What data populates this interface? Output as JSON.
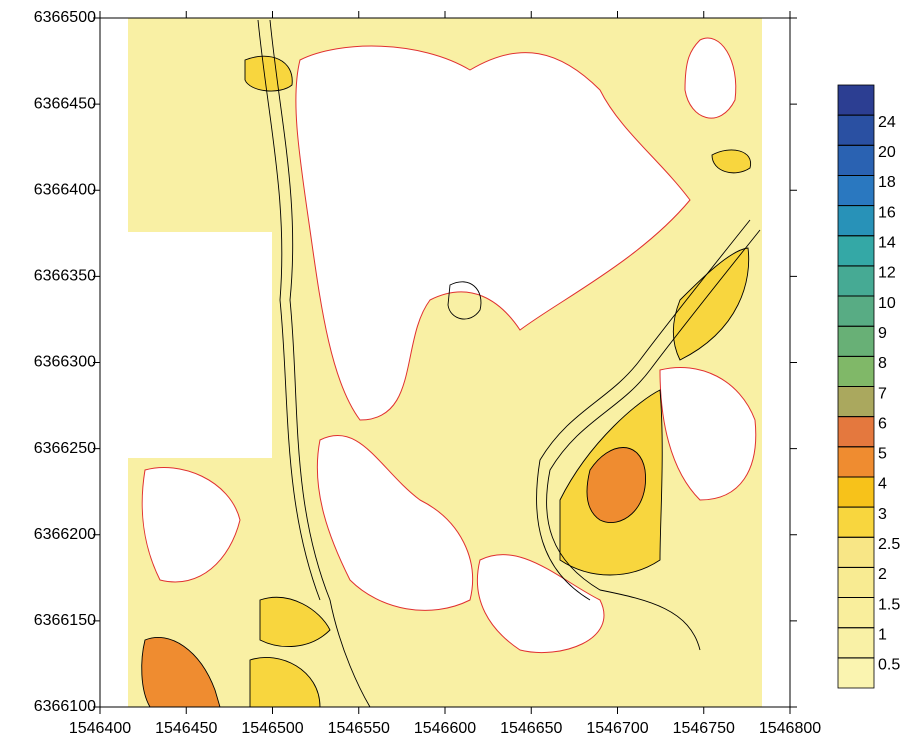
{
  "chart_data": {
    "type": "contour",
    "xlim": [
      1546400,
      1546800
    ],
    "xticks": [
      1546400,
      1546450,
      1546500,
      1546550,
      1546600,
      1546650,
      1546700,
      1546750,
      1546800
    ],
    "ylim": [
      6366100,
      6366500
    ],
    "yticks": [
      6366100,
      6366150,
      6366200,
      6366250,
      6366300,
      6366350,
      6366400,
      6366450,
      6366500
    ],
    "colorbar": {
      "levels": [
        0.5,
        1,
        1.5,
        2,
        2.5,
        3,
        4,
        5,
        6,
        7,
        8,
        9,
        10,
        12,
        14,
        16,
        18,
        20,
        24
      ],
      "colors": [
        "#faf4b0",
        "#f9f1a6",
        "#f9ee9c",
        "#f8eb92",
        "#f8e686",
        "#f8d63e",
        "#f7c21a",
        "#ef8c30",
        "#e4783e",
        "#aaa85e",
        "#80b868",
        "#68b076",
        "#58ac84",
        "#46aa94",
        "#34a8a6",
        "#2892b8",
        "#2a78c0",
        "#2a62b2",
        "#2a50a2",
        "#2c3e92"
      ]
    }
  }
}
